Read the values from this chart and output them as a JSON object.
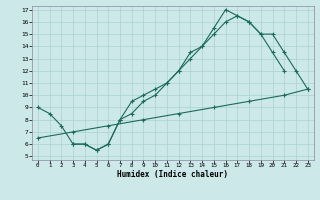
{
  "xlabel": "Humidex (Indice chaleur)",
  "bg_color": "#cce8e8",
  "grid_color": "#aad0d0",
  "line_color": "#1a6b5a",
  "xlim": [
    0,
    23
  ],
  "ylim": [
    5,
    17
  ],
  "xticks": [
    0,
    1,
    2,
    3,
    4,
    5,
    6,
    7,
    8,
    9,
    10,
    11,
    12,
    13,
    14,
    15,
    16,
    17,
    18,
    19,
    20,
    21,
    22,
    23
  ],
  "yticks": [
    5,
    6,
    7,
    8,
    9,
    10,
    11,
    12,
    13,
    14,
    15,
    16,
    17
  ],
  "curve1_x": [
    0,
    1,
    2,
    3,
    4,
    5,
    6,
    7,
    8,
    9,
    10,
    11,
    12,
    13,
    14,
    15,
    16,
    17,
    18,
    19,
    20,
    21
  ],
  "curve1_y": [
    9.0,
    8.5,
    7.5,
    6.0,
    6.0,
    5.5,
    6.0,
    8.0,
    9.5,
    10.0,
    10.5,
    11.0,
    12.0,
    13.5,
    14.0,
    15.5,
    17.0,
    16.5,
    16.0,
    15.0,
    13.5,
    12.0
  ],
  "curve2_x": [
    0,
    3,
    6,
    9,
    12,
    15,
    18,
    21,
    23
  ],
  "curve2_y": [
    6.5,
    7.0,
    7.5,
    8.0,
    8.5,
    9.0,
    9.5,
    10.0,
    10.5
  ],
  "curve3_x": [
    3,
    4,
    5,
    6,
    7,
    8,
    9,
    10,
    11,
    12,
    13,
    14,
    15,
    16,
    17,
    18,
    19,
    20,
    21,
    22,
    23
  ],
  "curve3_y": [
    6.0,
    6.0,
    5.5,
    6.0,
    8.0,
    8.5,
    9.5,
    10.0,
    11.0,
    12.0,
    13.0,
    14.0,
    15.0,
    16.0,
    16.5,
    16.0,
    15.0,
    15.0,
    13.5,
    12.0,
    10.5
  ]
}
